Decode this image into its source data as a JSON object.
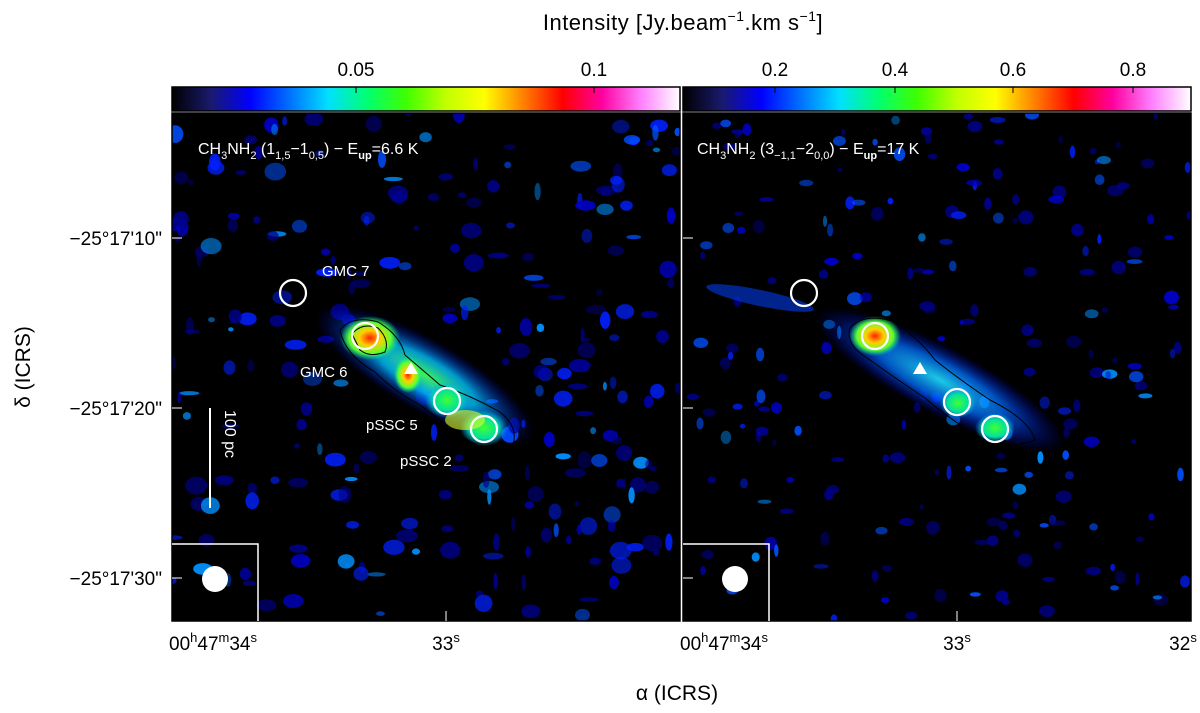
{
  "colorbar_title": {
    "main": "Intensity [Jy.beam",
    "exp1": "−1",
    "mid": ".km s",
    "exp2": "−1",
    "close": "]"
  },
  "colorbar_left_ticks": [
    "0.05",
    "0.1"
  ],
  "colorbar_right_ticks": [
    "0.2",
    "0.4",
    "0.6",
    "0.8"
  ],
  "colormap_stops": [
    "#000000",
    "#1a1a6e",
    "#0000ff",
    "#0070ff",
    "#00e0ff",
    "#00ff70",
    "#40ff00",
    "#c0ff00",
    "#ffff00",
    "#ff8000",
    "#ff0000",
    "#ff00a0",
    "#ff80ff",
    "#ffffff"
  ],
  "panel_left": {
    "line_label": {
      "mol": "CH",
      "sub1": "3",
      "mol2": "NH",
      "sub2": "2",
      "trans_open": " (1",
      "tsub1": "1,5",
      "dash": "−1",
      "tsub2": "0,5",
      "trans_close": ") − E",
      "esub": "up",
      "energy": "=6.6 K"
    },
    "sources": [
      {
        "name": "GMC 7"
      },
      {
        "name": "GMC 6"
      },
      {
        "name": "pSSC 5"
      },
      {
        "name": "pSSC 2"
      }
    ],
    "scalebar_label": "100 pc"
  },
  "panel_right": {
    "line_label": {
      "mol": "CH",
      "sub1": "3",
      "mol2": "NH",
      "sub2": "2",
      "trans_open": " (3",
      "tsub1": "−1,1",
      "dash": "−2",
      "tsub2": "0,0",
      "trans_close": ") − E",
      "esub": "up",
      "energy": "=17 K"
    }
  },
  "y_ticks": [
    "−25°17'10\"",
    "−25°17'20\"",
    "−25°17'30\""
  ],
  "x_ticks_left": {
    "first": {
      "h": "00",
      "m": "47",
      "s": "34"
    },
    "second": "33"
  },
  "x_ticks_right": {
    "first": {
      "h": "00",
      "m": "47",
      "s": "34"
    },
    "second": "33",
    "third": "32"
  },
  "ylabel": "δ (ICRS)",
  "xlabel": "α (ICRS)"
}
